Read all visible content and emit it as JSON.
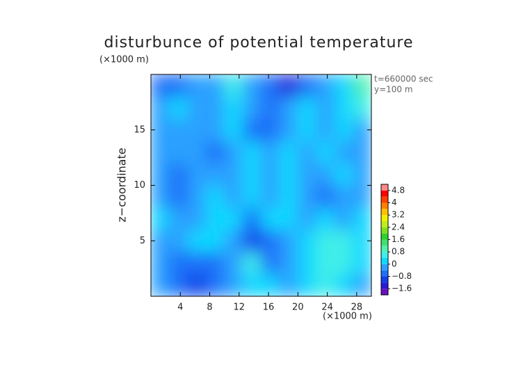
{
  "chart_data": {
    "type": "heatmap",
    "title": "disturbunce of potential temperature",
    "y_unit": "(×1000 m)",
    "x_unit": "(×1000 m)",
    "ylabel": "z−coordinate",
    "annotations": [
      "t=660000 sec",
      "y=100 m"
    ],
    "x": [
      1.25,
      3.75,
      6.25,
      8.75,
      11.25,
      13.75,
      16.25,
      18.75,
      21.25,
      23.75,
      26.25,
      28.75
    ],
    "z": [
      1,
      3,
      5,
      7,
      9,
      11,
      13,
      15,
      17,
      19
    ],
    "values": [
      [
        -0.3,
        -0.6,
        -0.9,
        -0.7,
        -0.3,
        0.1,
        0.0,
        -0.2,
        0.3,
        0.4,
        0.1,
        -0.1
      ],
      [
        -0.4,
        -0.6,
        -0.7,
        -0.5,
        -0.2,
        0.6,
        -0.5,
        -0.2,
        0.2,
        0.5,
        0.7,
        0.3
      ],
      [
        -0.2,
        -0.3,
        0.0,
        0.2,
        -0.3,
        -0.9,
        -0.8,
        -0.4,
        0.0,
        0.4,
        0.5,
        0.2
      ],
      [
        0.0,
        -0.3,
        -0.1,
        0.3,
        0.2,
        -0.7,
        0.0,
        0.2,
        -0.3,
        0.0,
        -0.2,
        0.0
      ],
      [
        -0.2,
        -0.5,
        -0.2,
        0.0,
        -0.3,
        0.0,
        -0.2,
        0.3,
        -0.3,
        -0.5,
        -0.2,
        -0.3
      ],
      [
        -0.3,
        -0.6,
        -0.4,
        -0.2,
        -0.4,
        0.1,
        -0.3,
        0.2,
        -0.2,
        -0.4,
        0.0,
        -0.4
      ],
      [
        -0.2,
        -0.4,
        -0.2,
        -0.5,
        -0.3,
        0.0,
        -0.3,
        0.1,
        -0.4,
        0.0,
        -0.3,
        -0.2
      ],
      [
        -0.3,
        -0.2,
        -0.4,
        -0.3,
        0.1,
        -0.6,
        -0.7,
        -0.2,
        0.0,
        -0.3,
        0.2,
        -0.2
      ],
      [
        -0.2,
        0.0,
        -0.3,
        -0.2,
        0.3,
        -0.4,
        -0.5,
        -0.3,
        0.0,
        -0.2,
        0.3,
        0.4
      ],
      [
        -0.5,
        -0.5,
        -0.4,
        -0.3,
        0.6,
        -0.2,
        -0.8,
        -1.6,
        -0.8,
        -0.2,
        0.3,
        1.0
      ]
    ],
    "xlim": [
      0,
      30
    ],
    "ylim": [
      0,
      20
    ],
    "xticks": [
      4,
      8,
      12,
      16,
      20,
      24,
      28
    ],
    "yticks": [
      5,
      10,
      15
    ],
    "levels": [
      -2.0,
      -1.6,
      -1.2,
      -0.8,
      -0.4,
      0,
      0.4,
      0.8,
      1.2,
      1.6,
      2.0,
      2.4,
      2.8,
      3.2,
      3.6,
      4.0,
      4.4,
      4.8,
      5.2
    ],
    "colors": [
      "#6a10c0",
      "#2a1ad8",
      "#1440e8",
      "#1e70f8",
      "#2ca0ff",
      "#10d8ff",
      "#40eee8",
      "#50f0b0",
      "#40e070",
      "#30d030",
      "#80e020",
      "#c0ec20",
      "#f0f000",
      "#ffc000",
      "#ff8000",
      "#ff4000",
      "#ff0000",
      "#ff8888"
    ],
    "colorbar_ticks": [
      {
        "value": 4.8,
        "label": "4.8"
      },
      4,
      {
        "value": 3.2,
        "label": "3.2"
      },
      {
        "value": 2.4,
        "label": "2.4"
      },
      {
        "value": 1.6,
        "label": "1.6"
      },
      {
        "value": 0.8,
        "label": "0.8"
      },
      0,
      {
        "value": -0.8,
        "label": "−0.8"
      },
      {
        "value": -1.6,
        "label": "−1.6"
      }
    ]
  }
}
